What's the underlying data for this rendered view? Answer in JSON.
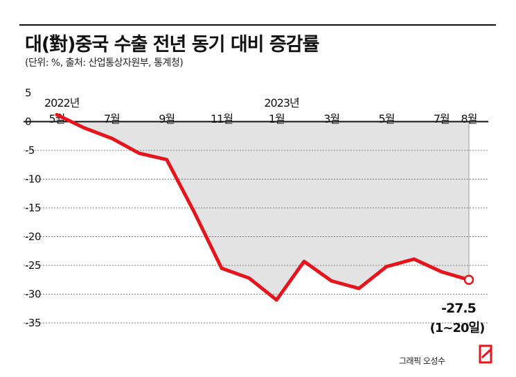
{
  "header": {
    "title": "대(對)중국 수출 전년 동기 대비 증감률",
    "subtitle": "(단위: %, 출처: 산업통상자원부, 통계청)"
  },
  "credit": "그래픽 오성수",
  "chart_data": {
    "type": "area",
    "x": [
      "2022-05",
      "2022-06",
      "2022-07",
      "2022-08",
      "2022-09",
      "2022-10",
      "2022-11",
      "2022-12",
      "2023-01",
      "2023-02",
      "2023-03",
      "2023-04",
      "2023-05",
      "2023-06",
      "2023-07",
      "2023-08"
    ],
    "values": [
      1.2,
      -1.1,
      -2.9,
      -5.5,
      -6.6,
      -15.7,
      -25.5,
      -27.2,
      -31.0,
      -24.3,
      -27.7,
      -29.0,
      -25.2,
      -23.9,
      -26.1,
      -27.5
    ],
    "tick_labels": [
      {
        "i": 0,
        "text": "5월"
      },
      {
        "i": 2,
        "text": "7월"
      },
      {
        "i": 4,
        "text": "9월"
      },
      {
        "i": 6,
        "text": "11월"
      },
      {
        "i": 8,
        "text": "1월"
      },
      {
        "i": 10,
        "text": "3월"
      },
      {
        "i": 12,
        "text": "5월"
      },
      {
        "i": 14,
        "text": "7월"
      },
      {
        "i": 15,
        "text": "8월"
      }
    ],
    "year_labels": [
      {
        "i": 0,
        "text": "2022년"
      },
      {
        "i": 8,
        "text": "2023년"
      }
    ],
    "yticks": [
      5,
      0,
      -5,
      -10,
      -15,
      -20,
      -25,
      -30,
      -35
    ],
    "ylim": [
      -35,
      5
    ],
    "grid": true,
    "annotation": {
      "value": "-27.5",
      "note": "(1~20일)"
    },
    "colors": {
      "line": "#e8141b",
      "fill": "#e3e3e3",
      "grid": "#7a7a7a",
      "axis": "#111111"
    }
  }
}
